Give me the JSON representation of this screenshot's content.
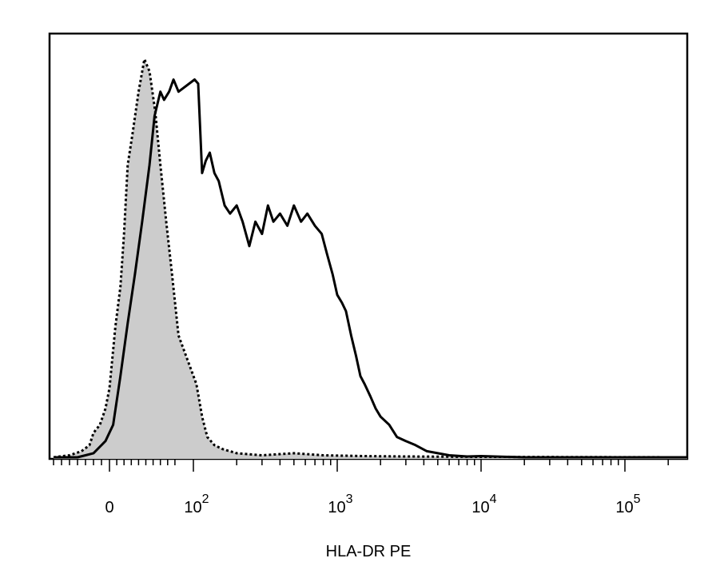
{
  "chart_data": {
    "type": "area",
    "title": "",
    "xlabel": "HLA-DR PE",
    "ylabel": "",
    "x_scale": "biexponential",
    "xlim": [
      -80,
      300000
    ],
    "ylim": [
      0,
      1
    ],
    "grid": false,
    "legend": "none",
    "x_ticks": [
      {
        "value": 0,
        "base": "0",
        "exp": ""
      },
      {
        "value": 100,
        "base": "10",
        "exp": "2"
      },
      {
        "value": 1000,
        "base": "10",
        "exp": "3"
      },
      {
        "value": 10000,
        "base": "10",
        "exp": "4"
      },
      {
        "value": 100000,
        "base": "10",
        "exp": "5"
      }
    ],
    "series": [
      {
        "style": "dotted-filled",
        "fill": "#cccccc",
        "stroke": "#000000",
        "points": [
          [
            -70,
            0.0
          ],
          [
            -50,
            0.005
          ],
          [
            -35,
            0.015
          ],
          [
            -25,
            0.03
          ],
          [
            -20,
            0.06
          ],
          [
            -12,
            0.08
          ],
          [
            -5,
            0.12
          ],
          [
            0,
            0.17
          ],
          [
            8,
            0.32
          ],
          [
            15,
            0.42
          ],
          [
            20,
            0.55
          ],
          [
            25,
            0.72
          ],
          [
            32,
            0.8
          ],
          [
            40,
            0.9
          ],
          [
            48,
            0.98
          ],
          [
            55,
            0.95
          ],
          [
            63,
            0.85
          ],
          [
            70,
            0.72
          ],
          [
            78,
            0.58
          ],
          [
            86,
            0.45
          ],
          [
            95,
            0.3
          ],
          [
            105,
            0.18
          ],
          [
            115,
            0.1
          ],
          [
            125,
            0.05
          ],
          [
            140,
            0.03
          ],
          [
            160,
            0.02
          ],
          [
            200,
            0.01
          ],
          [
            300,
            0.005
          ],
          [
            500,
            0.01
          ],
          [
            800,
            0.005
          ],
          [
            1500,
            0.003
          ],
          [
            3000,
            0.002
          ],
          [
            10000,
            0.001
          ],
          [
            300000,
            0.0
          ]
        ]
      },
      {
        "style": "solid",
        "fill": "none",
        "stroke": "#000000",
        "points": [
          [
            -70,
            0.0
          ],
          [
            -40,
            0.0
          ],
          [
            -30,
            0.005
          ],
          [
            -20,
            0.01
          ],
          [
            -10,
            0.03
          ],
          [
            -5,
            0.04
          ],
          [
            5,
            0.08
          ],
          [
            15,
            0.2
          ],
          [
            25,
            0.33
          ],
          [
            35,
            0.45
          ],
          [
            45,
            0.58
          ],
          [
            55,
            0.72
          ],
          [
            62,
            0.84
          ],
          [
            70,
            0.9
          ],
          [
            75,
            0.88
          ],
          [
            82,
            0.9
          ],
          [
            88,
            0.93
          ],
          [
            95,
            0.9
          ],
          [
            102,
            0.93
          ],
          [
            108,
            0.92
          ],
          [
            115,
            0.7
          ],
          [
            122,
            0.73
          ],
          [
            130,
            0.75
          ],
          [
            140,
            0.7
          ],
          [
            150,
            0.68
          ],
          [
            165,
            0.62
          ],
          [
            180,
            0.6
          ],
          [
            200,
            0.62
          ],
          [
            220,
            0.58
          ],
          [
            245,
            0.52
          ],
          [
            270,
            0.58
          ],
          [
            300,
            0.55
          ],
          [
            330,
            0.62
          ],
          [
            360,
            0.58
          ],
          [
            400,
            0.6
          ],
          [
            450,
            0.57
          ],
          [
            500,
            0.62
          ],
          [
            560,
            0.58
          ],
          [
            620,
            0.6
          ],
          [
            700,
            0.57
          ],
          [
            780,
            0.55
          ],
          [
            850,
            0.5
          ],
          [
            930,
            0.45
          ],
          [
            1000,
            0.4
          ],
          [
            1080,
            0.38
          ],
          [
            1150,
            0.36
          ],
          [
            1250,
            0.3
          ],
          [
            1350,
            0.25
          ],
          [
            1450,
            0.2
          ],
          [
            1550,
            0.18
          ],
          [
            1700,
            0.15
          ],
          [
            1850,
            0.12
          ],
          [
            2000,
            0.1
          ],
          [
            2300,
            0.08
          ],
          [
            2600,
            0.05
          ],
          [
            3000,
            0.04
          ],
          [
            3500,
            0.03
          ],
          [
            4200,
            0.015
          ],
          [
            5000,
            0.01
          ],
          [
            6000,
            0.005
          ],
          [
            8000,
            0.002
          ],
          [
            10000,
            0.003
          ],
          [
            20000,
            0.0
          ],
          [
            300000,
            0.0
          ]
        ]
      }
    ]
  }
}
